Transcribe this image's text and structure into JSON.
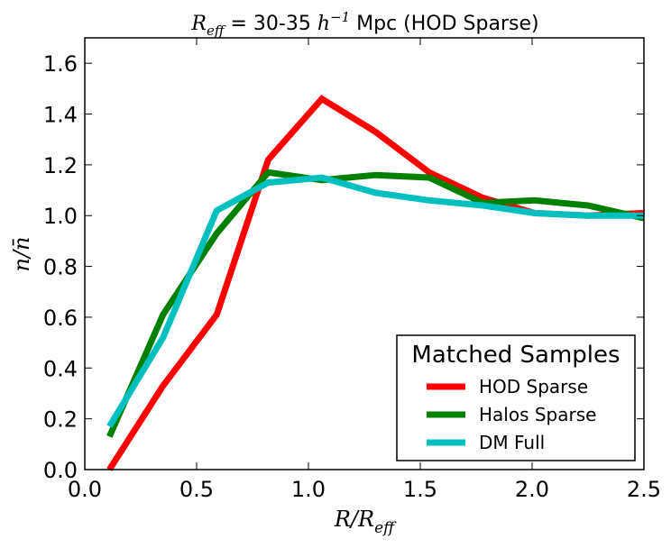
{
  "chart_data": {
    "type": "line",
    "title": "R_eff = 30-35 h^-1 Mpc (HOD Sparse)",
    "title_parts": {
      "symbol": "R",
      "symbol_sub": "eff",
      "range": " = 30-35 ",
      "unit_symbol": "h",
      "unit_sup": "−1",
      "rest": " Mpc (HOD Sparse)"
    },
    "xlabel": "R/R_eff",
    "xlabel_parts": {
      "main": "R/R",
      "sub": "eff"
    },
    "ylabel": "n/n̄",
    "xlim": [
      0.0,
      2.5
    ],
    "ylim": [
      0.0,
      1.7
    ],
    "xticks": [
      0.0,
      0.5,
      1.0,
      1.5,
      2.0,
      2.5
    ],
    "xtick_labels": [
      "0.0",
      "0.5",
      "1.0",
      "1.5",
      "2.0",
      "2.5"
    ],
    "yticks": [
      0.0,
      0.2,
      0.4,
      0.6,
      0.8,
      1.0,
      1.2,
      1.4,
      1.6
    ],
    "ytick_labels": [
      "0.0",
      "0.2",
      "0.4",
      "0.6",
      "0.8",
      "1.0",
      "1.2",
      "1.4",
      "1.6"
    ],
    "grid": false,
    "legend": {
      "title": "Matched Samples",
      "location": "lower-right"
    },
    "series": [
      {
        "name": "HOD Sparse",
        "color": "#ff0000",
        "x": [
          0.11,
          0.35,
          0.59,
          0.82,
          1.06,
          1.3,
          1.54,
          1.78,
          2.01,
          2.25,
          2.5
        ],
        "y": [
          0.0,
          0.33,
          0.61,
          1.22,
          1.46,
          1.33,
          1.17,
          1.07,
          1.01,
          1.0,
          1.01
        ]
      },
      {
        "name": "Halos Sparse",
        "color": "#008000",
        "x": [
          0.11,
          0.35,
          0.59,
          0.82,
          1.06,
          1.3,
          1.54,
          1.78,
          2.01,
          2.25,
          2.5
        ],
        "y": [
          0.13,
          0.61,
          0.93,
          1.17,
          1.14,
          1.16,
          1.15,
          1.05,
          1.06,
          1.04,
          0.99
        ]
      },
      {
        "name": "DM Full",
        "color": "#00bfbf",
        "x": [
          0.11,
          0.35,
          0.59,
          0.82,
          1.06,
          1.3,
          1.54,
          1.78,
          2.01,
          2.25,
          2.5
        ],
        "y": [
          0.17,
          0.52,
          1.02,
          1.13,
          1.15,
          1.09,
          1.06,
          1.04,
          1.01,
          1.0,
          1.0
        ]
      }
    ]
  }
}
